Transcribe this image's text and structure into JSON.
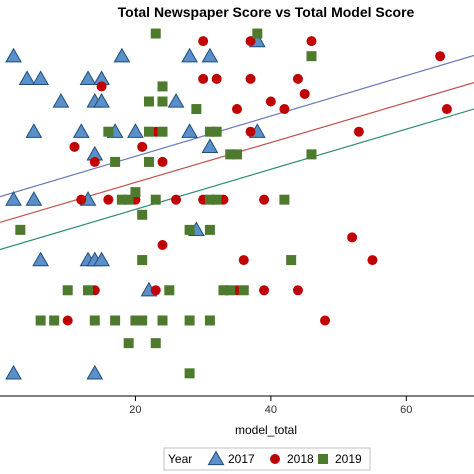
{
  "chart_data": {
    "type": "scatter",
    "title": "Total Newspaper Score vs Total Model Score",
    "xlabel": "model_total",
    "ylabel": "",
    "xlim": [
      0,
      70
    ],
    "ylim": [
      -2,
      47
    ],
    "xticks": [
      20,
      40,
      60
    ],
    "grid": false,
    "legend": {
      "title": "Year",
      "position": "bottom",
      "entries": [
        "2017",
        "2018",
        "2019"
      ]
    },
    "colors": {
      "2017": "#5b8fc9",
      "2018": "#c00000",
      "2019": "#4e7a2e"
    },
    "series": [
      {
        "name": "2017",
        "marker": "triangle",
        "points": [
          [
            2,
            43
          ],
          [
            18,
            43
          ],
          [
            28,
            43
          ],
          [
            31,
            43
          ],
          [
            38,
            45
          ],
          [
            4,
            40
          ],
          [
            6,
            40
          ],
          [
            13,
            40
          ],
          [
            15,
            40
          ],
          [
            9,
            37
          ],
          [
            14,
            37
          ],
          [
            15,
            37
          ],
          [
            26,
            37
          ],
          [
            5,
            33
          ],
          [
            12,
            33
          ],
          [
            17,
            33
          ],
          [
            20,
            33
          ],
          [
            28,
            33
          ],
          [
            38,
            33
          ],
          [
            14,
            30
          ],
          [
            31,
            31
          ],
          [
            2,
            24
          ],
          [
            5,
            24
          ],
          [
            13,
            24
          ],
          [
            29,
            20
          ],
          [
            6,
            16
          ],
          [
            13,
            16
          ],
          [
            14,
            16
          ],
          [
            15,
            16
          ],
          [
            22,
            12
          ],
          [
            2,
            1
          ],
          [
            14,
            1
          ]
        ]
      },
      {
        "name": "2018",
        "marker": "circle",
        "points": [
          [
            30,
            45
          ],
          [
            37,
            45
          ],
          [
            46,
            45
          ],
          [
            30,
            40
          ],
          [
            32,
            40
          ],
          [
            37,
            40
          ],
          [
            44,
            40
          ],
          [
            65,
            43
          ],
          [
            15,
            39
          ],
          [
            45,
            38
          ],
          [
            35,
            36
          ],
          [
            40,
            37
          ],
          [
            42,
            36
          ],
          [
            66,
            36
          ],
          [
            23,
            33
          ],
          [
            37,
            33
          ],
          [
            53,
            33
          ],
          [
            11,
            31
          ],
          [
            21,
            31
          ],
          [
            14,
            29
          ],
          [
            24,
            29
          ],
          [
            12,
            24
          ],
          [
            16,
            24
          ],
          [
            20,
            24
          ],
          [
            26,
            24
          ],
          [
            30,
            24
          ],
          [
            33,
            24
          ],
          [
            39,
            24
          ],
          [
            52,
            19
          ],
          [
            24,
            18
          ],
          [
            36,
            16
          ],
          [
            55,
            16
          ],
          [
            14,
            12
          ],
          [
            23,
            12
          ],
          [
            35,
            12
          ],
          [
            39,
            12
          ],
          [
            44,
            12
          ],
          [
            10,
            8
          ],
          [
            48,
            8
          ]
        ]
      },
      {
        "name": "2019",
        "marker": "square",
        "points": [
          [
            23,
            46
          ],
          [
            38,
            46
          ],
          [
            46,
            43
          ],
          [
            24,
            39
          ],
          [
            22,
            37
          ],
          [
            24,
            37
          ],
          [
            29,
            36
          ],
          [
            16,
            33
          ],
          [
            22,
            33
          ],
          [
            24,
            33
          ],
          [
            31,
            33
          ],
          [
            32,
            33
          ],
          [
            17,
            29
          ],
          [
            22,
            29
          ],
          [
            34,
            30
          ],
          [
            35,
            30
          ],
          [
            46,
            30
          ],
          [
            18,
            24
          ],
          [
            19,
            24
          ],
          [
            23,
            24
          ],
          [
            31,
            24
          ],
          [
            32,
            24
          ],
          [
            42,
            24
          ],
          [
            21,
            22
          ],
          [
            20,
            25
          ],
          [
            3,
            20
          ],
          [
            28,
            20
          ],
          [
            31,
            20
          ],
          [
            21,
            16
          ],
          [
            43,
            16
          ],
          [
            10,
            12
          ],
          [
            13,
            12
          ],
          [
            25,
            12
          ],
          [
            33,
            12
          ],
          [
            34,
            12
          ],
          [
            36,
            12
          ],
          [
            6,
            8
          ],
          [
            8,
            8
          ],
          [
            14,
            8
          ],
          [
            17,
            8
          ],
          [
            20,
            8
          ],
          [
            21,
            8
          ],
          [
            24,
            8
          ],
          [
            28,
            8
          ],
          [
            31,
            8
          ],
          [
            19,
            5
          ],
          [
            23,
            5
          ],
          [
            28,
            1
          ]
        ]
      }
    ],
    "fit_lines": [
      {
        "color": "#6a7ab8",
        "from": [
          0,
          24.4
        ],
        "to": [
          70,
          43.1
        ]
      },
      {
        "color": "#c0504d",
        "from": [
          0,
          21.0
        ],
        "to": [
          70,
          39.5
        ]
      },
      {
        "color": "#2e8b7a",
        "from": [
          0,
          17.4
        ],
        "to": [
          70,
          36.0
        ]
      }
    ]
  }
}
